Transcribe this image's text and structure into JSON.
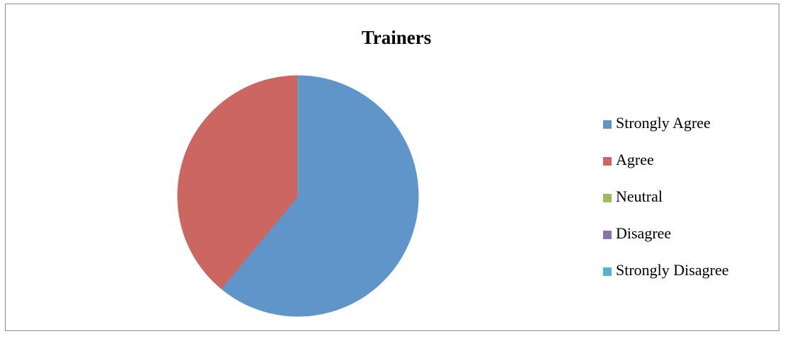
{
  "chart_data": {
    "type": "pie",
    "title": "Trainers",
    "categories": [
      "Strongly Agree",
      "Agree",
      "Neutral",
      "Disagree",
      "Strongly Disagree"
    ],
    "values": [
      61,
      39,
      0,
      0,
      0
    ],
    "colors": [
      "#5f95c9",
      "#cc6660",
      "#9dbb61",
      "#8a72ab",
      "#4fb6cc"
    ],
    "legend": "right"
  }
}
